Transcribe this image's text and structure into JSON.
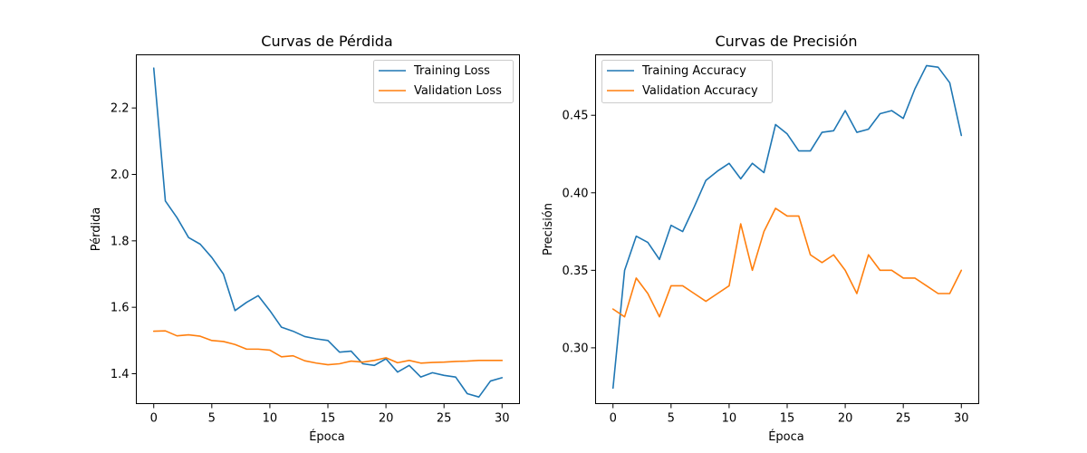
{
  "chart_data": [
    {
      "type": "line",
      "title": "Curvas de Pérdida",
      "xlabel": "Época",
      "ylabel": "Pérdida",
      "xlim": [
        -1.5,
        31.5
      ],
      "ylim": [
        1.31,
        2.36
      ],
      "xticks": [
        0,
        5,
        10,
        15,
        20,
        25,
        30
      ],
      "yticks": [
        1.4,
        1.6,
        1.8,
        2.0,
        2.2
      ],
      "ytick_labels": [
        "1.4",
        "1.6",
        "1.8",
        "2.0",
        "2.2"
      ],
      "grid": false,
      "legend_position": "top-right",
      "x": [
        0,
        1,
        2,
        3,
        4,
        5,
        6,
        7,
        8,
        9,
        10,
        11,
        12,
        13,
        14,
        15,
        16,
        17,
        18,
        19,
        20,
        21,
        22,
        23,
        24,
        25,
        26,
        27,
        28,
        29,
        30
      ],
      "series": [
        {
          "name": "Training Loss",
          "color": "#1f77b4",
          "values": [
            2.32,
            1.92,
            1.87,
            1.81,
            1.79,
            1.75,
            1.7,
            1.59,
            1.615,
            1.635,
            1.59,
            1.54,
            1.528,
            1.512,
            1.505,
            1.5,
            1.465,
            1.468,
            1.43,
            1.425,
            1.445,
            1.405,
            1.425,
            1.39,
            1.403,
            1.395,
            1.39,
            1.34,
            1.33,
            1.378,
            1.388
          ]
        },
        {
          "name": "Validation Loss",
          "color": "#ff7f0e",
          "values": [
            1.528,
            1.529,
            1.514,
            1.517,
            1.513,
            1.5,
            1.497,
            1.488,
            1.474,
            1.474,
            1.471,
            1.451,
            1.454,
            1.439,
            1.432,
            1.427,
            1.43,
            1.438,
            1.435,
            1.44,
            1.448,
            1.433,
            1.44,
            1.432,
            1.434,
            1.435,
            1.437,
            1.438,
            1.44,
            1.44,
            1.44
          ]
        }
      ]
    },
    {
      "type": "line",
      "title": "Curvas de Precisión",
      "xlabel": "Época",
      "ylabel": "Precisión",
      "xlim": [
        -1.5,
        31.5
      ],
      "ylim": [
        0.264,
        0.489
      ],
      "xticks": [
        0,
        5,
        10,
        15,
        20,
        25,
        30
      ],
      "yticks": [
        0.3,
        0.35,
        0.4,
        0.45
      ],
      "ytick_labels": [
        "0.30",
        "0.35",
        "0.40",
        "0.45"
      ],
      "grid": false,
      "legend_position": "top-left",
      "x": [
        0,
        1,
        2,
        3,
        4,
        5,
        6,
        7,
        8,
        9,
        10,
        11,
        12,
        13,
        14,
        15,
        16,
        17,
        18,
        19,
        20,
        21,
        22,
        23,
        24,
        25,
        26,
        27,
        28,
        29,
        30
      ],
      "series": [
        {
          "name": "Training Accuracy",
          "color": "#1f77b4",
          "values": [
            0.274,
            0.35,
            0.372,
            0.368,
            0.357,
            0.379,
            0.375,
            0.391,
            0.408,
            0.414,
            0.419,
            0.409,
            0.419,
            0.413,
            0.444,
            0.438,
            0.427,
            0.427,
            0.439,
            0.44,
            0.453,
            0.439,
            0.441,
            0.451,
            0.453,
            0.448,
            0.467,
            0.482,
            0.481,
            0.471,
            0.437
          ]
        },
        {
          "name": "Validation Accuracy",
          "color": "#ff7f0e",
          "values": [
            0.325,
            0.32,
            0.345,
            0.335,
            0.32,
            0.34,
            0.34,
            0.335,
            0.33,
            0.335,
            0.34,
            0.38,
            0.35,
            0.375,
            0.39,
            0.385,
            0.385,
            0.36,
            0.355,
            0.36,
            0.35,
            0.335,
            0.36,
            0.35,
            0.35,
            0.345,
            0.345,
            0.34,
            0.335,
            0.335,
            0.35
          ]
        }
      ]
    }
  ]
}
